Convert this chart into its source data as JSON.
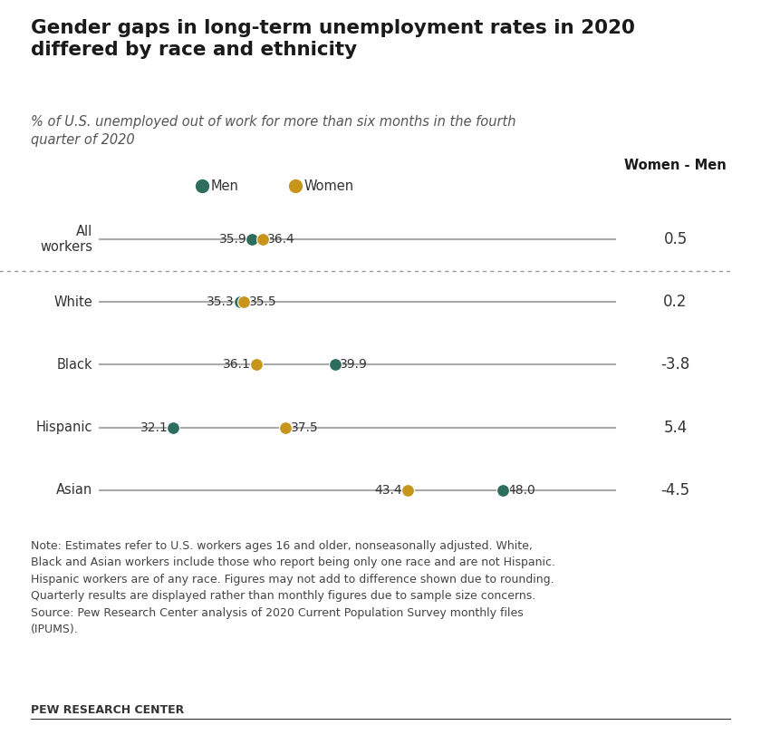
{
  "title": "Gender gaps in long-term unemployment rates in 2020\ndiffered by race and ethnicity",
  "subtitle": "% of U.S. unemployed out of work for more than six months in the fourth\nquarter of 2020",
  "categories": [
    "All\nworkers",
    "White",
    "Black",
    "Hispanic",
    "Asian"
  ],
  "men_values": [
    35.9,
    35.3,
    39.9,
    32.1,
    48.0
  ],
  "women_values": [
    36.4,
    35.5,
    36.1,
    37.5,
    43.4
  ],
  "differences": [
    "0.5",
    "0.2",
    "-3.8",
    "5.4",
    "-4.5"
  ],
  "men_color": "#2d6e5e",
  "women_color": "#c8951c",
  "line_color": "#aaaaaa",
  "x_min": 28.5,
  "x_max": 53.5,
  "note_line1": "Note: Estimates refer to U.S. workers ages 16 and older, nonseasonally adjusted. White,",
  "note_line2": "Black and Asian workers include those who report being only one race and are not Hispanic.",
  "note_line3": "Hispanic workers are of any race. Figures may not add to difference shown due to rounding.",
  "note_line4": "Quarterly results are displayed rather than monthly figures due to sample size concerns.",
  "note_line5": "Source: Pew Research Center analysis of 2020 Current Population Survey monthly files",
  "note_line6": "(IPUMS).",
  "source_label": "PEW RESEARCH CENTER",
  "diff_col_label": "Women - Men",
  "bg_color": "#ffffff",
  "diff_bg_color": "#eeecea",
  "legend_men": "Men",
  "legend_women": "Women"
}
